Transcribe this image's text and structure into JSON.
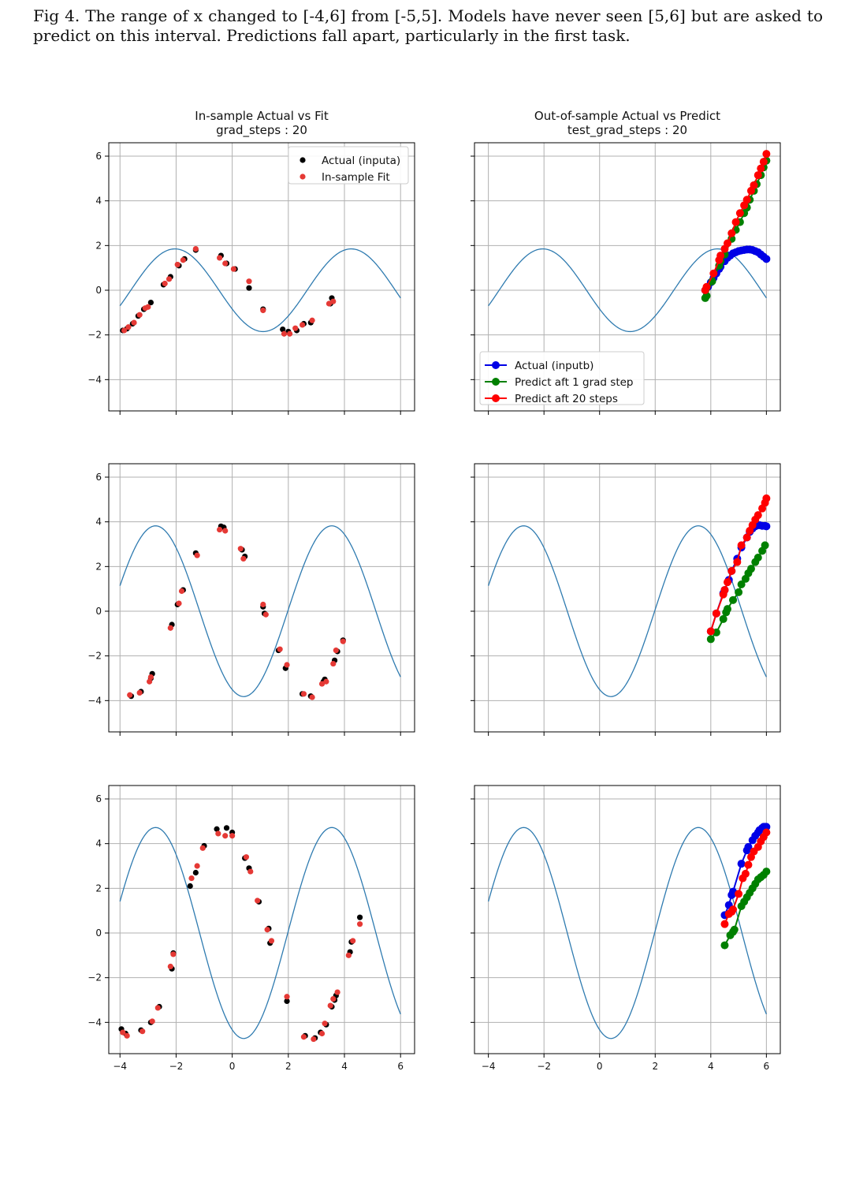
{
  "caption": "Fig 4. The range of x changed to [-4,6] from [-5,5]. Models have never seen [5,6] but are asked to predict on this interval. Predictions fall apart, particularly in the first task.",
  "colors": {
    "curve": "#2f7bb0",
    "actual_inputa": "#000000",
    "insample_fit": "#e53935",
    "actual_inputb": "#0000e6",
    "predict_1": "#008000",
    "predict_20": "#ff0000",
    "grid": "#b0b0b0"
  },
  "chart_data": [
    {
      "type": "scatter",
      "title": [
        "In-sample Actual vs Fit",
        "grad_steps : 20"
      ],
      "xlim": [
        -4.4,
        6.5
      ],
      "ylim": [
        -5.4,
        6.6
      ],
      "xticks": [
        -4,
        -2,
        0,
        2,
        4,
        6
      ],
      "yticks": [
        -4,
        -2,
        0,
        2,
        4,
        6
      ],
      "x_tick_labels_shown": false,
      "grid": true,
      "legend": "top-right",
      "curve": {
        "amplitude": 1.85,
        "phase": 2.67,
        "x_range": [
          -4,
          6
        ]
      },
      "series": [
        {
          "name": "Actual (inputa)",
          "marker": "dot",
          "x": [
            -3.9,
            -3.75,
            -3.55,
            -3.35,
            -3.15,
            -2.9,
            -2.45,
            -2.2,
            -1.9,
            -1.7,
            -1.3,
            -0.4,
            -0.2,
            0.1,
            0.6,
            1.1,
            1.8,
            2.0,
            2.3,
            2.55,
            2.8,
            3.5,
            3.55
          ],
          "y": [
            -1.8,
            -1.72,
            -1.5,
            -1.15,
            -0.85,
            -0.55,
            0.25,
            0.6,
            1.1,
            1.4,
            1.8,
            1.55,
            1.2,
            0.95,
            0.1,
            -0.85,
            -1.75,
            -1.85,
            -1.8,
            -1.5,
            -1.45,
            -0.6,
            -0.35
          ]
        },
        {
          "name": "In-sample Fit",
          "marker": "dot",
          "x": [
            -3.85,
            -3.7,
            -3.5,
            -3.3,
            -3.1,
            -3.0,
            -2.4,
            -2.25,
            -1.95,
            -1.75,
            -1.3,
            -0.45,
            -0.25,
            0.05,
            0.6,
            1.1,
            1.85,
            2.05,
            2.25,
            2.5,
            2.85,
            3.45,
            3.6
          ],
          "y": [
            -1.8,
            -1.65,
            -1.45,
            -1.1,
            -0.8,
            -0.75,
            0.3,
            0.5,
            1.15,
            1.35,
            1.85,
            1.45,
            1.2,
            0.95,
            0.4,
            -0.9,
            -1.95,
            -1.95,
            -1.7,
            -1.55,
            -1.35,
            -0.6,
            -0.5
          ]
        }
      ]
    },
    {
      "type": "line",
      "title": [
        "Out-of-sample Actual vs Predict",
        "test_grad_steps : 20"
      ],
      "xlim": [
        -4.5,
        6.5
      ],
      "ylim": [
        -5.4,
        6.6
      ],
      "xticks": [
        -4,
        -2,
        0,
        2,
        4,
        6
      ],
      "yticks": [
        -4,
        -2,
        0,
        2,
        4,
        6
      ],
      "x_tick_labels_shown": false,
      "grid": true,
      "legend": "bottom-left",
      "curve": {
        "amplitude": 1.85,
        "phase": 2.67,
        "x_range": [
          -4,
          6
        ]
      },
      "series": [
        {
          "name": "Actual (inputb)",
          "marker": "line-dot",
          "x": [
            3.8,
            3.9,
            4.0,
            4.1,
            4.2,
            4.3,
            4.35,
            4.5,
            4.6,
            4.7,
            4.8,
            4.9,
            5.0,
            5.1,
            5.2,
            5.3,
            5.4,
            5.5,
            5.6,
            5.7,
            5.8,
            5.9,
            6.0
          ],
          "y": [
            0.0,
            0.15,
            0.35,
            0.55,
            0.75,
            0.95,
            1.05,
            1.3,
            1.45,
            1.55,
            1.65,
            1.7,
            1.75,
            1.78,
            1.8,
            1.82,
            1.82,
            1.8,
            1.75,
            1.7,
            1.6,
            1.5,
            1.4
          ]
        },
        {
          "name": "Predict aft 1 grad step",
          "marker": "line-dot",
          "x": [
            3.8,
            3.85,
            4.05,
            4.3,
            4.35,
            4.5,
            4.75,
            4.9,
            5.05,
            5.2,
            5.3,
            5.4,
            5.55,
            5.65,
            5.8,
            5.9,
            6.0
          ],
          "y": [
            -0.35,
            -0.25,
            0.4,
            1.1,
            1.3,
            1.6,
            2.3,
            2.7,
            3.05,
            3.45,
            3.7,
            4.05,
            4.45,
            4.75,
            5.15,
            5.5,
            5.8
          ]
        },
        {
          "name": "Predict aft 20 steps",
          "marker": "line-dot",
          "x": [
            3.8,
            3.85,
            4.1,
            4.3,
            4.35,
            4.5,
            4.6,
            4.75,
            4.9,
            5.05,
            5.2,
            5.3,
            5.45,
            5.55,
            5.7,
            5.8,
            5.9,
            6.0
          ],
          "y": [
            0.0,
            0.15,
            0.75,
            1.35,
            1.55,
            1.85,
            2.1,
            2.55,
            3.05,
            3.45,
            3.8,
            4.05,
            4.45,
            4.7,
            5.15,
            5.45,
            5.75,
            6.1
          ]
        }
      ]
    },
    {
      "type": "scatter",
      "xlim": [
        -4.4,
        6.5
      ],
      "ylim": [
        -5.4,
        6.6
      ],
      "xticks": [
        -4,
        -2,
        0,
        2,
        4,
        6
      ],
      "yticks": [
        -4,
        -2,
        0,
        2,
        4,
        6
      ],
      "x_tick_labels_shown": false,
      "grid": true,
      "curve": {
        "amplitude": 3.82,
        "phase": 1.98,
        "x_range": [
          -4,
          6
        ]
      },
      "series": [
        {
          "name": "",
          "marker": "dot",
          "x": [
            -3.6,
            -3.25,
            -2.9,
            -2.85,
            -2.15,
            -1.95,
            -1.75,
            -1.3,
            -0.4,
            -0.3,
            0.35,
            0.45,
            1.1,
            1.15,
            1.65,
            1.9,
            2.5,
            2.8,
            3.25,
            3.3,
            3.65,
            3.75,
            3.95
          ],
          "y": [
            -3.8,
            -3.6,
            -3.0,
            -2.8,
            -0.6,
            0.3,
            0.95,
            2.6,
            3.8,
            3.75,
            2.75,
            2.45,
            0.2,
            -0.1,
            -1.75,
            -2.55,
            -3.7,
            -3.8,
            -3.15,
            -3.05,
            -2.2,
            -1.8,
            -1.3
          ]
        },
        {
          "name": "",
          "marker": "dot",
          "x": [
            -3.65,
            -3.3,
            -2.95,
            -2.9,
            -2.2,
            -1.9,
            -1.8,
            -1.25,
            -0.45,
            -0.25,
            0.3,
            0.4,
            1.1,
            1.2,
            1.7,
            1.95,
            2.55,
            2.85,
            3.2,
            3.35,
            3.6,
            3.7,
            3.95
          ],
          "y": [
            -3.75,
            -3.65,
            -3.15,
            -2.95,
            -0.75,
            0.35,
            0.9,
            2.5,
            3.65,
            3.6,
            2.8,
            2.35,
            0.3,
            -0.15,
            -1.7,
            -2.4,
            -3.7,
            -3.85,
            -3.25,
            -3.15,
            -2.35,
            -1.75,
            -1.35
          ]
        }
      ]
    },
    {
      "type": "line",
      "xlim": [
        -4.5,
        6.5
      ],
      "ylim": [
        -5.4,
        6.6
      ],
      "xticks": [
        -4,
        -2,
        0,
        2,
        4,
        6
      ],
      "yticks": [
        -4,
        -2,
        0,
        2,
        4,
        6
      ],
      "x_tick_labels_shown": false,
      "grid": true,
      "curve": {
        "amplitude": 3.82,
        "phase": 1.98,
        "x_range": [
          -4,
          6
        ]
      },
      "series": [
        {
          "name": "",
          "marker": "line-dot",
          "x": [
            4.0,
            4.2,
            4.45,
            4.5,
            4.65,
            4.75,
            4.95,
            5.1,
            5.3,
            5.4,
            5.5,
            5.6,
            5.7,
            5.75,
            5.85,
            5.95,
            6.0
          ],
          "y": [
            -0.9,
            -0.1,
            0.8,
            0.95,
            1.4,
            1.8,
            2.35,
            2.85,
            3.3,
            3.55,
            3.7,
            3.8,
            3.85,
            3.85,
            3.82,
            3.82,
            3.8
          ]
        },
        {
          "name": "",
          "marker": "line-dot",
          "x": [
            4.0,
            4.2,
            4.45,
            4.55,
            4.6,
            4.8,
            5.0,
            5.1,
            5.25,
            5.35,
            5.45,
            5.6,
            5.7,
            5.85,
            5.95
          ],
          "y": [
            -1.25,
            -0.95,
            -0.35,
            -0.05,
            0.1,
            0.5,
            0.85,
            1.2,
            1.45,
            1.7,
            1.9,
            2.2,
            2.4,
            2.7,
            2.95
          ]
        },
        {
          "name": "",
          "marker": "line-dot",
          "x": [
            4.0,
            4.2,
            4.45,
            4.5,
            4.6,
            4.75,
            4.95,
            5.1,
            5.3,
            5.4,
            5.5,
            5.6,
            5.7,
            5.85,
            5.95,
            6.0
          ],
          "y": [
            -0.9,
            -0.1,
            0.75,
            0.95,
            1.3,
            1.8,
            2.2,
            2.95,
            3.3,
            3.6,
            3.85,
            4.1,
            4.3,
            4.6,
            4.85,
            5.05
          ]
        }
      ]
    },
    {
      "type": "scatter",
      "xlim": [
        -4.4,
        6.5
      ],
      "ylim": [
        -5.4,
        6.6
      ],
      "xticks": [
        -4,
        -2,
        0,
        2,
        4,
        6
      ],
      "yticks": [
        -4,
        -2,
        0,
        2,
        4,
        6
      ],
      "x_tick_labels": [
        "−4",
        "−2",
        "0",
        "2",
        "4",
        "6"
      ],
      "grid": true,
      "curve": {
        "amplitude": 4.72,
        "phase": 1.98,
        "x_range": [
          -4,
          6
        ]
      },
      "series": [
        {
          "name": "",
          "marker": "dot",
          "x": [
            -3.95,
            -3.8,
            -3.25,
            -2.9,
            -2.6,
            -2.15,
            -2.1,
            -1.5,
            -1.3,
            -1.0,
            -0.55,
            -0.2,
            0.0,
            0.45,
            0.6,
            0.95,
            1.3,
            1.35,
            1.95,
            2.6,
            2.95,
            3.15,
            3.35,
            3.55,
            3.65,
            3.7,
            4.2,
            4.25,
            4.55
          ],
          "y": [
            -4.3,
            -4.5,
            -4.35,
            -4.0,
            -3.3,
            -1.6,
            -0.9,
            2.1,
            2.7,
            3.9,
            4.65,
            4.7,
            4.5,
            3.35,
            2.9,
            1.4,
            0.2,
            -0.45,
            -3.05,
            -4.6,
            -4.7,
            -4.45,
            -4.1,
            -3.3,
            -3.0,
            -2.8,
            -0.85,
            -0.4,
            0.7
          ]
        },
        {
          "name": "",
          "marker": "dot",
          "x": [
            -3.9,
            -3.75,
            -3.2,
            -2.85,
            -2.65,
            -2.2,
            -2.1,
            -1.45,
            -1.25,
            -1.05,
            -0.5,
            -0.25,
            0.0,
            0.5,
            0.65,
            0.9,
            1.25,
            1.4,
            1.95,
            2.55,
            2.9,
            3.2,
            3.3,
            3.5,
            3.6,
            3.75,
            4.15,
            4.3,
            4.55
          ],
          "y": [
            -4.45,
            -4.6,
            -4.4,
            -3.95,
            -3.35,
            -1.5,
            -0.95,
            2.45,
            3.0,
            3.8,
            4.45,
            4.35,
            4.35,
            3.4,
            2.75,
            1.45,
            0.15,
            -0.35,
            -2.85,
            -4.65,
            -4.75,
            -4.5,
            -4.05,
            -3.25,
            -2.95,
            -2.65,
            -1.0,
            -0.35,
            0.4
          ]
        }
      ]
    },
    {
      "type": "line",
      "xlim": [
        -4.5,
        6.5
      ],
      "ylim": [
        -5.4,
        6.6
      ],
      "xticks": [
        -4,
        -2,
        0,
        2,
        4,
        6
      ],
      "yticks": [
        -4,
        -2,
        0,
        2,
        4,
        6
      ],
      "x_tick_labels": [
        "−4",
        "−2",
        "0",
        "2",
        "4",
        "6"
      ],
      "grid": true,
      "curve": {
        "amplitude": 4.72,
        "phase": 1.98,
        "x_range": [
          -4,
          6
        ]
      },
      "series": [
        {
          "name": "",
          "marker": "line-dot",
          "x": [
            4.5,
            4.65,
            4.75,
            4.8,
            5.1,
            5.3,
            5.35,
            5.5,
            5.6,
            5.7,
            5.75,
            5.85,
            5.9,
            5.95,
            6.0
          ],
          "y": [
            0.8,
            1.25,
            1.7,
            1.85,
            3.1,
            3.7,
            3.85,
            4.15,
            4.35,
            4.5,
            4.6,
            4.7,
            4.75,
            4.75,
            4.75
          ]
        },
        {
          "name": "",
          "marker": "line-dot",
          "x": [
            4.5,
            4.7,
            4.8,
            4.85,
            5.1,
            5.2,
            5.3,
            5.4,
            5.5,
            5.6,
            5.7,
            5.8,
            5.9,
            6.0
          ],
          "y": [
            -0.55,
            -0.1,
            0.05,
            0.15,
            1.2,
            1.4,
            1.6,
            1.8,
            2.0,
            2.2,
            2.4,
            2.5,
            2.6,
            2.75
          ]
        },
        {
          "name": "",
          "marker": "line-dot",
          "x": [
            4.5,
            4.65,
            4.75,
            4.8,
            5.0,
            5.15,
            5.25,
            5.35,
            5.45,
            5.55,
            5.7,
            5.8,
            5.9,
            6.0
          ],
          "y": [
            0.4,
            0.85,
            0.95,
            1.05,
            1.75,
            2.45,
            2.65,
            3.05,
            3.4,
            3.65,
            3.85,
            4.1,
            4.3,
            4.5
          ]
        }
      ]
    }
  ],
  "legends": {
    "panel_0": [
      "Actual (inputa)",
      "In-sample Fit"
    ],
    "panel_1": [
      "Actual (inputb)",
      "Predict aft 1 grad step",
      "Predict aft 20 steps"
    ]
  }
}
